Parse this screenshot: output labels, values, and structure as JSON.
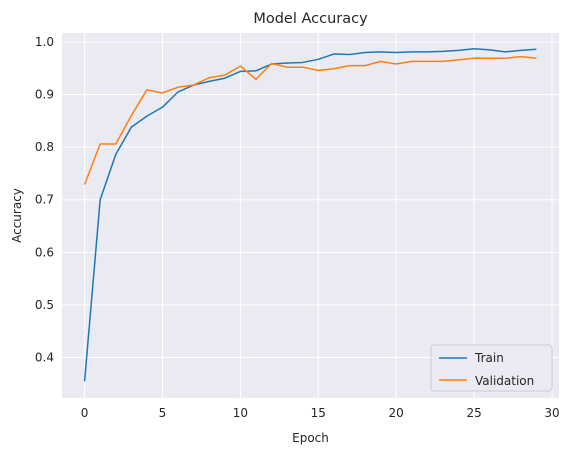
{
  "chart_data": {
    "type": "line",
    "title": "Model Accuracy",
    "xlabel": "Epoch",
    "ylabel": "Accuracy",
    "xlim": [
      -1.45,
      30.45
    ],
    "ylim": [
      0.323,
      1.017
    ],
    "xticks": [
      0,
      5,
      10,
      15,
      20,
      25,
      30
    ],
    "yticks": [
      0.4,
      0.5,
      0.6,
      0.7,
      0.8,
      0.9,
      1.0
    ],
    "ytick_labels": [
      "0.4",
      "0.5",
      "0.6",
      "0.7",
      "0.8",
      "0.9",
      "1.0"
    ],
    "grid": true,
    "legend_position": "bottom-right",
    "x": [
      0,
      1,
      2,
      3,
      4,
      5,
      6,
      7,
      8,
      9,
      10,
      11,
      12,
      13,
      14,
      15,
      16,
      17,
      18,
      19,
      20,
      21,
      22,
      23,
      24,
      25,
      26,
      27,
      28,
      29
    ],
    "series": [
      {
        "name": "Train",
        "color": "#1f77b4",
        "values": [
          0.355,
          0.7,
          0.786,
          0.838,
          0.859,
          0.876,
          0.905,
          0.918,
          0.925,
          0.931,
          0.944,
          0.945,
          0.958,
          0.96,
          0.961,
          0.967,
          0.977,
          0.976,
          0.98,
          0.981,
          0.98,
          0.981,
          0.981,
          0.982,
          0.984,
          0.987,
          0.985,
          0.981,
          0.984,
          0.986
        ]
      },
      {
        "name": "Validation",
        "color": "#ff7f0e",
        "values": [
          0.729,
          0.806,
          0.806,
          0.86,
          0.909,
          0.903,
          0.914,
          0.918,
          0.932,
          0.937,
          0.954,
          0.929,
          0.959,
          0.952,
          0.952,
          0.946,
          0.949,
          0.955,
          0.955,
          0.963,
          0.958,
          0.963,
          0.963,
          0.963,
          0.966,
          0.969,
          0.969,
          0.969,
          0.972,
          0.969
        ]
      }
    ]
  }
}
